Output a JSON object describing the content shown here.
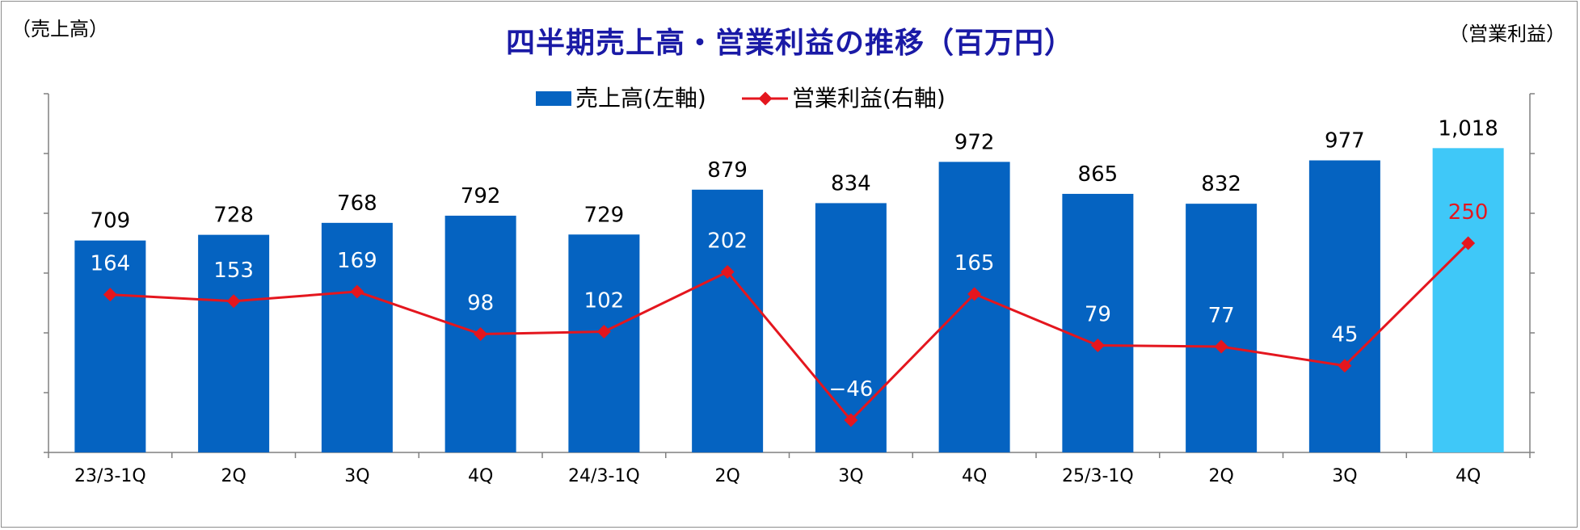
{
  "title": "四半期売上高・営業利益の推移（百万円）",
  "left_axis_unit": "（売上高）",
  "right_axis_unit": "（営業利益）",
  "colors": {
    "bar": "#0563c1",
    "bar_highlight": "#3fc8f8",
    "line": "#e4161e",
    "axis": "#808080",
    "title": "#1a1aa6"
  },
  "chart_data": {
    "type": "bar",
    "categories": [
      "23/3-1Q",
      "2Q",
      "3Q",
      "4Q",
      "24/3-1Q",
      "2Q",
      "3Q",
      "4Q",
      "25/3-1Q",
      "2Q",
      "3Q",
      "4Q"
    ],
    "series": [
      {
        "name": "売上高(左軸)",
        "type": "bar",
        "axis": "left",
        "values": [
          709,
          728,
          768,
          792,
          729,
          879,
          834,
          972,
          865,
          832,
          977,
          1018
        ],
        "labels": [
          "709",
          "728",
          "768",
          "792",
          "729",
          "879",
          "834",
          "972",
          "865",
          "832",
          "977",
          "1,018"
        ],
        "highlight_index": 11
      },
      {
        "name": "営業利益(右軸)",
        "type": "line",
        "axis": "right",
        "values": [
          164,
          153,
          169,
          98,
          102,
          202,
          -46,
          165,
          79,
          77,
          45,
          250
        ],
        "labels": [
          "164",
          "153",
          "169",
          "98",
          "102",
          "202",
          "−46",
          "165",
          "79",
          "77",
          "45",
          "250"
        ],
        "highlight_index": 11
      }
    ],
    "legend_position": "top-center",
    "grid": false
  }
}
